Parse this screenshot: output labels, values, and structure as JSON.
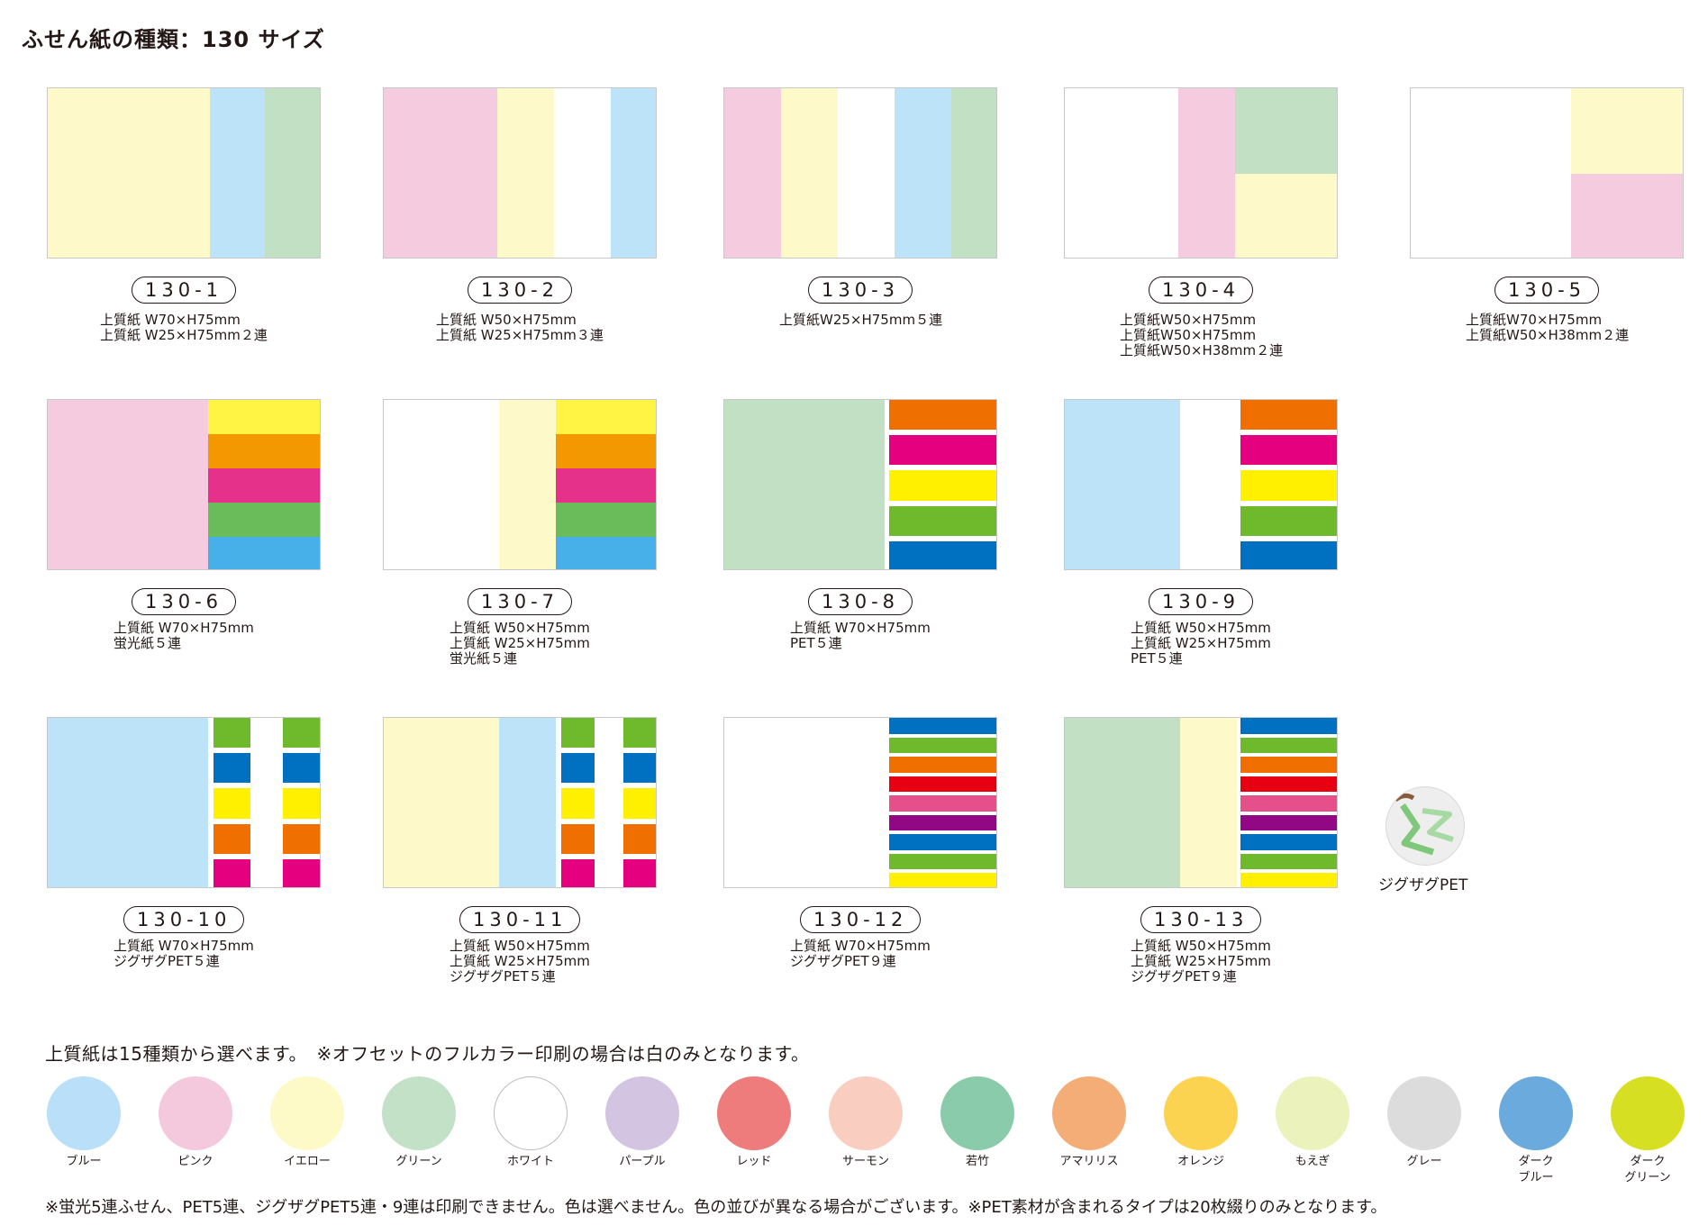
{
  "page": {
    "title": "ふせん紙の種類：130 サイズ",
    "paper_title": "上質紙は15種類から選べます。　※オフセットのフルカラー印刷の場合は白のみとなります。",
    "footnote": "※蛍光5連ふせん、PET5連、ジグザグPET5連・9連は印刷できません。色は選べません。色の並びが異なる場合がございます。※PET素材が含まれるタイプは20枚綴りのみとなります。",
    "zigzag_label": "ジグザグPET"
  },
  "colors": {
    "yellow_paper": "#fef9c8",
    "blue_paper": "#bde3f8",
    "green_paper": "#c1e0c4",
    "pink_paper": "#f5cbe0",
    "white": "#ffffff",
    "fl_yellow": "#fff343",
    "fl_orange": "#f39800",
    "fl_pink": "#e5318a",
    "fl_green": "#6abb5a",
    "fl_blue": "#47b0e8",
    "pet_orange": "#ef6f00",
    "pet_magenta": "#e4007f",
    "pet_yellow": "#fff000",
    "pet_green": "#6fb92c",
    "pet_blue": "#0071c0",
    "pet_red": "#e60012",
    "pet_pink": "#e6508a",
    "pet_purple": "#920783"
  },
  "products": [
    {
      "code": "130-1",
      "lines": [
        "上質紙 W70×H75mm",
        "上質紙 W25×H75mm２連"
      ]
    },
    {
      "code": "130-2",
      "lines": [
        "上質紙 W50×H75mm",
        "上質紙 W25×H75mm３連"
      ]
    },
    {
      "code": "130-3",
      "lines": [
        "上質紙W25×H75mm５連"
      ]
    },
    {
      "code": "130-4",
      "lines": [
        "上質紙W50×H75mm",
        "上質紙W50×H75mm",
        "上質紙W50×H38mm２連"
      ]
    },
    {
      "code": "130-5",
      "lines": [
        "上質紙W70×H75mm",
        "上質紙W50×H38mm２連"
      ]
    },
    {
      "code": "130-6",
      "lines": [
        "上質紙 W70×H75mm",
        "蛍光紙５連"
      ]
    },
    {
      "code": "130-7",
      "lines": [
        "上質紙 W50×H75mm",
        "上質紙 W25×H75mm",
        "蛍光紙５連"
      ]
    },
    {
      "code": "130-8",
      "lines": [
        "上質紙 W70×H75mm",
        "PET５連"
      ]
    },
    {
      "code": "130-9",
      "lines": [
        "上質紙 W50×H75mm",
        "上質紙 W25×H75mm",
        "PET５連"
      ]
    },
    {
      "code": "130-10",
      "lines": [
        "上質紙 W70×H75mm",
        "ジグザグPET５連"
      ]
    },
    {
      "code": "130-11",
      "lines": [
        "上質紙 W50×H75mm",
        "上質紙 W25×H75mm",
        "ジグザグPET５連"
      ]
    },
    {
      "code": "130-12",
      "lines": [
        "上質紙 W70×H75mm",
        "ジグザグPET９連"
      ]
    },
    {
      "code": "130-13",
      "lines": [
        "上質紙 W50×H75mm",
        "上質紙 W25×H75mm",
        "ジグザグPET９連"
      ]
    }
  ],
  "paper_colors": [
    {
      "name": "ブルー",
      "color": "#b9e0f8"
    },
    {
      "name": "ピンク",
      "color": "#f5c9dd"
    },
    {
      "name": "イエロー",
      "color": "#fefac8"
    },
    {
      "name": "グリーン",
      "color": "#c2e1c6"
    },
    {
      "name": "ホワイト",
      "color": "#ffffff"
    },
    {
      "name": "パープル",
      "color": "#d3c4e1"
    },
    {
      "name": "レッド",
      "color": "#ef7c7c"
    },
    {
      "name": "サーモン",
      "color": "#f9cdc0"
    },
    {
      "name": "若竹",
      "color": "#8acbac"
    },
    {
      "name": "アマリリス",
      "color": "#f5ad78"
    },
    {
      "name": "オレンジ",
      "color": "#fcd350"
    },
    {
      "name": "もえぎ",
      "color": "#ebf2bb"
    },
    {
      "name": "グレー",
      "color": "#dcdcdc"
    },
    {
      "name": "ダーク\nブルー",
      "color": "#6aaadc"
    },
    {
      "name": "ダーク\nグリーン",
      "color": "#d7df23"
    }
  ]
}
